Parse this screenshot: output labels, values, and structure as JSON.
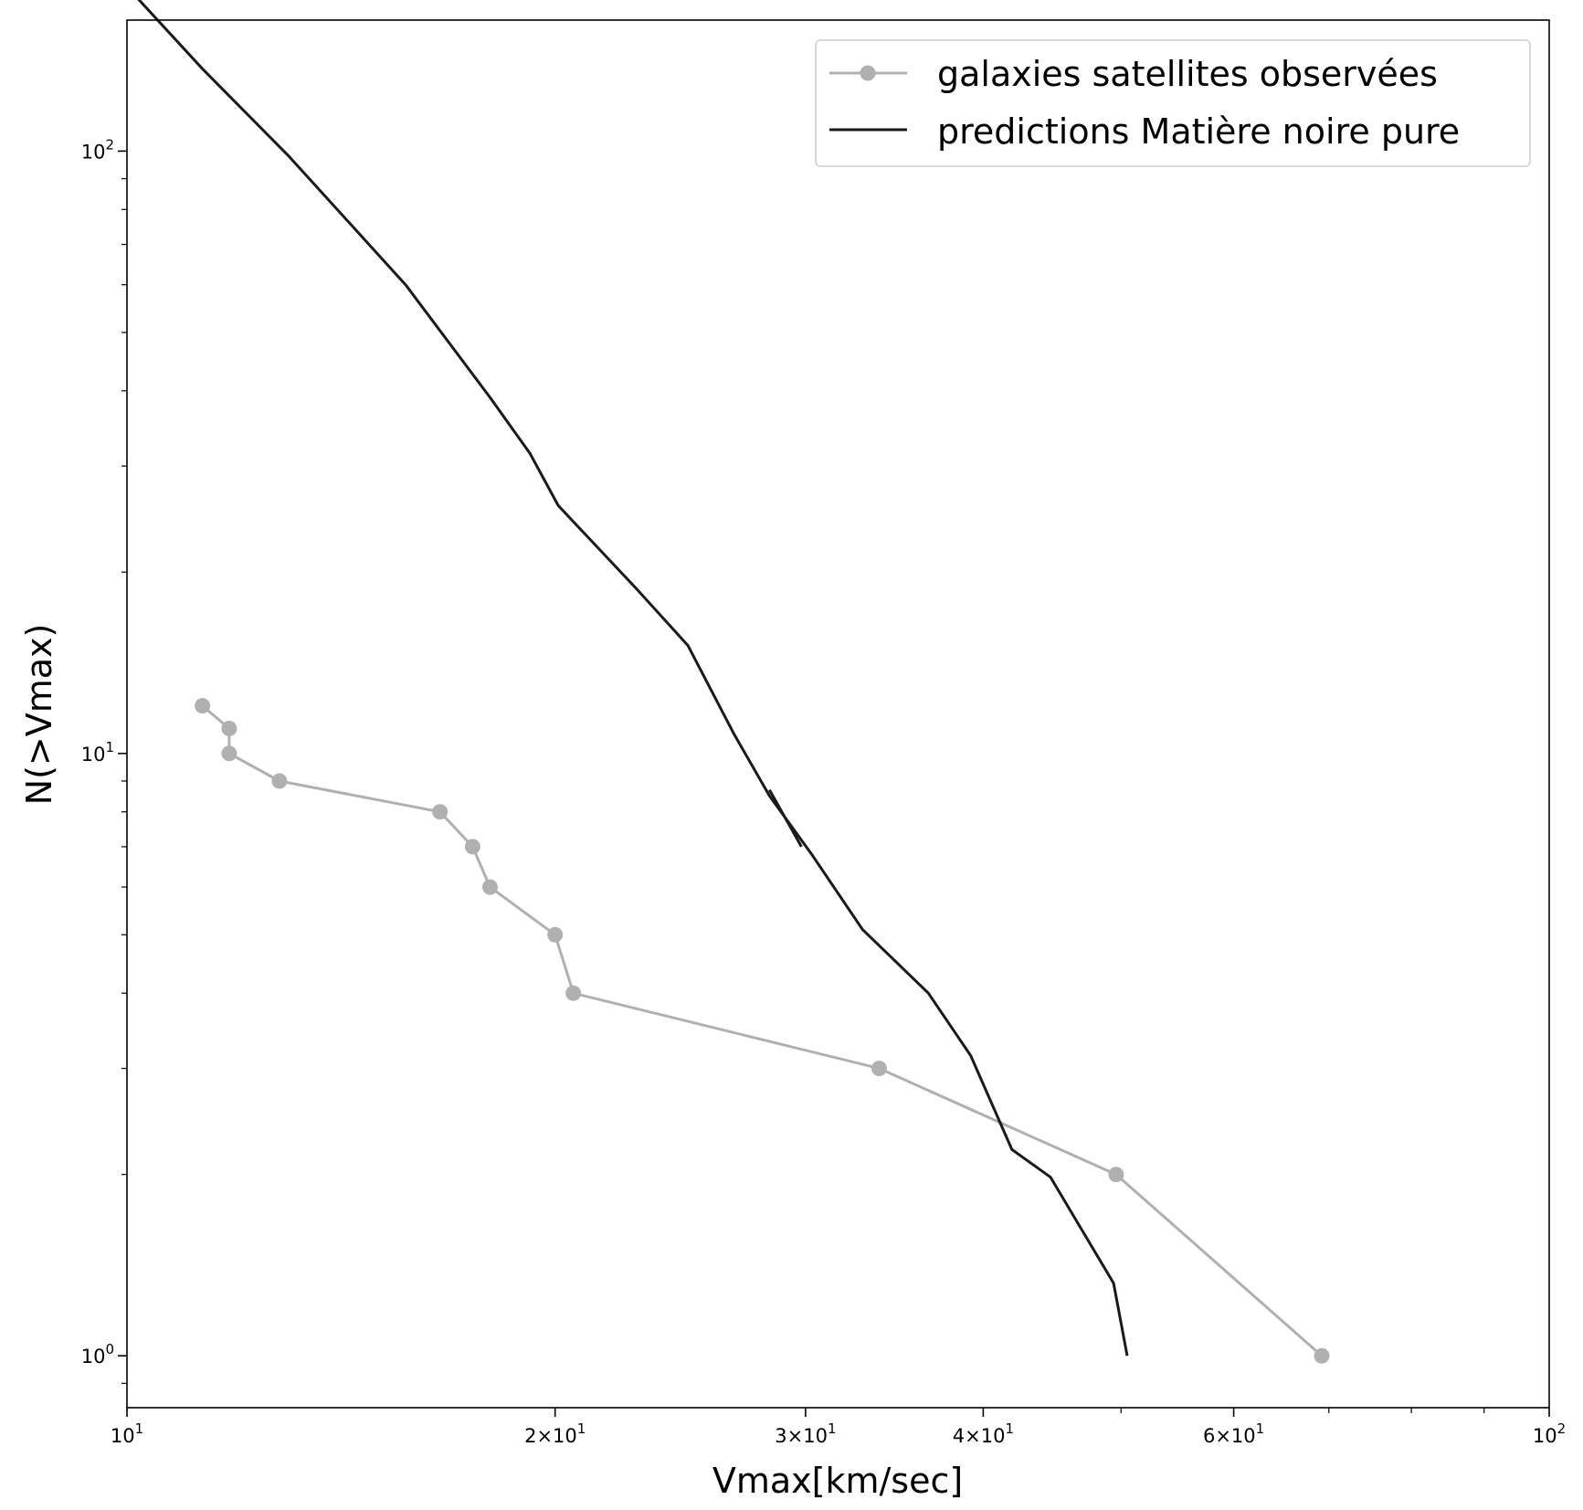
{
  "chart_data": {
    "type": "line",
    "xlabel": "Vmax[km/sec]",
    "ylabel": "N(>Vmax)",
    "xscale": "log",
    "yscale": "log",
    "xlim": [
      10,
      100
    ],
    "ylim": [
      0.82,
      165
    ],
    "grid": false,
    "legend_position": "top-right",
    "x_ticks": [
      {
        "value": 10,
        "base": "10",
        "exp": "1"
      },
      {
        "value": 20,
        "base": "2×10",
        "exp": "1"
      },
      {
        "value": 30,
        "base": "3×10",
        "exp": "1"
      },
      {
        "value": 40,
        "base": "4×10",
        "exp": "1"
      },
      {
        "value": 60,
        "base": "6×10",
        "exp": "1"
      },
      {
        "value": 100,
        "base": "10",
        "exp": "2"
      }
    ],
    "y_ticks": [
      {
        "value": 1,
        "base": "10",
        "exp": "0"
      },
      {
        "value": 10,
        "base": "10",
        "exp": "1"
      },
      {
        "value": 100,
        "base": "10",
        "exp": "2"
      }
    ],
    "series": [
      {
        "name": "galaxies satellites observées",
        "color": "#b0b0b0",
        "marker": "circle",
        "x": [
          11.3,
          11.8,
          11.8,
          12.8,
          16.6,
          17.5,
          18.0,
          20.0,
          20.6,
          33.8,
          49.6,
          69.2
        ],
        "y": [
          12,
          11,
          10,
          9,
          8,
          7,
          6,
          5,
          4,
          3,
          2,
          1
        ]
      },
      {
        "name": "predictions Matière noire pure",
        "color": "#1a1a1a",
        "marker": "none",
        "x": [
          10.05,
          11.3,
          13.0,
          15.7,
          18.0,
          19.2,
          20.1,
          22.8,
          24.8,
          26.7,
          28.3,
          30.3,
          32.9,
          36.6,
          39.2,
          41.9,
          44.6,
          49.4,
          50.5
        ],
        "y": [
          185,
          137,
          98,
          60,
          39,
          31.5,
          25.8,
          18.8,
          15.1,
          10.8,
          8.5,
          6.8,
          5.1,
          4.0,
          3.15,
          2.2,
          1.98,
          1.32,
          1.0
        ]
      },
      {
        "name": "",
        "color": "#1a1a1a",
        "marker": "none",
        "x": [
          28.3,
          29.8
        ],
        "y": [
          8.7,
          7.0
        ]
      }
    ]
  }
}
